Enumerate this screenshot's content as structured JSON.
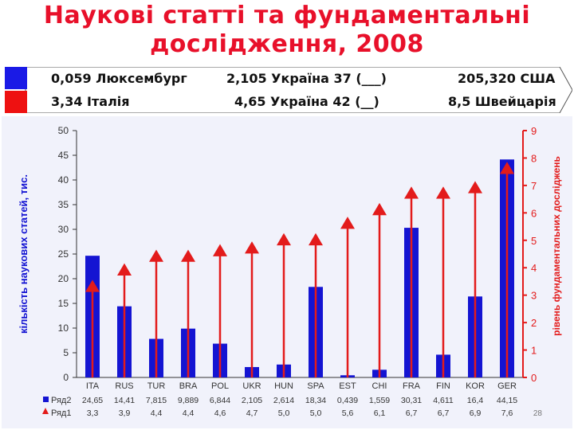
{
  "title_line1": "Наукові статті та фундаментальні",
  "title_line2": "дослідження, 2008",
  "banner": {
    "row1": {
      "left": "0,059 Люксембург",
      "mid": "2,105 Україна 37 (___)",
      "right": "205,320 США",
      "color": "#1a1ae6"
    },
    "row2": {
      "left": "3,34 Італія",
      "mid": "4,65 Україна 42 (__)",
      "right": "8,5 Швейцарія",
      "color": "#ee1111"
    }
  },
  "chart_data": {
    "type": "bar",
    "categories": [
      "ITA",
      "RUS",
      "TUR",
      "BRA",
      "POL",
      "UKR",
      "HUN",
      "SPA",
      "EST",
      "CHI",
      "FRA",
      "FIN",
      "KOR",
      "GER"
    ],
    "series": [
      {
        "name": "Ряд2",
        "kind": "bar",
        "axis": "left",
        "color": "#1414d2",
        "labels": [
          "24,65",
          "14,41",
          "7,815",
          "9,889",
          "6,844",
          "2,105",
          "2,614",
          "18,34",
          "0,439",
          "1,559",
          "30,31",
          "4,611",
          "16,4",
          "44,15"
        ],
        "values": [
          24.65,
          14.41,
          7.815,
          9.889,
          6.844,
          2.105,
          2.614,
          18.34,
          0.439,
          1.559,
          30.31,
          4.611,
          16.4,
          44.15
        ]
      },
      {
        "name": "Ряд1",
        "kind": "marker-line",
        "axis": "right",
        "color": "#e31b1b",
        "labels": [
          "3,3",
          "3,9",
          "4,4",
          "4,4",
          "4,6",
          "4,7",
          "5,0",
          "5,0",
          "5,6",
          "6,1",
          "6,7",
          "6,7",
          "6,9",
          "7,6"
        ],
        "values": [
          3.3,
          3.9,
          4.4,
          4.4,
          4.6,
          4.7,
          5.0,
          5.0,
          5.6,
          6.1,
          6.7,
          6.7,
          6.9,
          7.6
        ]
      }
    ],
    "ylabel": "кількість наукових статей, тис.",
    "ylabel_right": "рівень фундаментальних досліджень",
    "ylim": [
      0,
      50
    ],
    "yticks": [
      0,
      5,
      10,
      15,
      20,
      25,
      30,
      35,
      40,
      45,
      50
    ],
    "ylim_right": [
      0,
      9
    ],
    "yticks_right": [
      0,
      1,
      2,
      3,
      4,
      5,
      6,
      7,
      8,
      9
    ],
    "grid": false,
    "legend_placement": "bottom-left, as data table"
  },
  "page_number": "28"
}
